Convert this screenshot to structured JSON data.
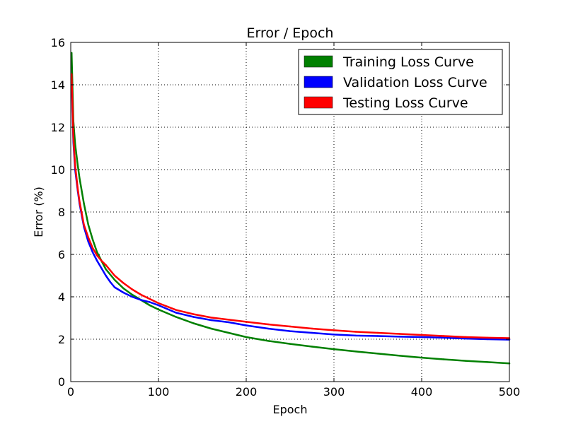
{
  "chart_data": {
    "type": "line",
    "title": "Error / Epoch",
    "xlabel": "Epoch",
    "ylabel": "Error (%)",
    "xlim": [
      0,
      500
    ],
    "ylim": [
      0,
      16
    ],
    "xticks": [
      0,
      100,
      200,
      300,
      400,
      500
    ],
    "yticks": [
      0,
      2,
      4,
      6,
      8,
      10,
      12,
      14,
      16
    ],
    "grid": true,
    "legend_position": "top-right",
    "series": [
      {
        "name": "Training Loss Curve",
        "color": "#008000",
        "x": [
          1,
          3,
          5,
          8,
          10,
          15,
          20,
          25,
          30,
          40,
          50,
          60,
          70,
          80,
          90,
          100,
          120,
          140,
          160,
          180,
          200,
          225,
          250,
          275,
          300,
          325,
          350,
          375,
          400,
          425,
          450,
          475,
          500
        ],
        "y": [
          15.5,
          12.3,
          11.2,
          10.2,
          9.6,
          8.4,
          7.4,
          6.7,
          6.1,
          5.3,
          4.8,
          4.4,
          4.1,
          3.85,
          3.6,
          3.4,
          3.05,
          2.75,
          2.5,
          2.3,
          2.1,
          1.92,
          1.78,
          1.65,
          1.53,
          1.42,
          1.32,
          1.22,
          1.13,
          1.05,
          0.98,
          0.92,
          0.86
        ]
      },
      {
        "name": "Validation Loss Curve",
        "color": "#0000ff",
        "x": [
          1,
          3,
          5,
          8,
          10,
          15,
          20,
          25,
          30,
          35,
          40,
          45,
          50,
          60,
          70,
          80,
          90,
          100,
          120,
          140,
          160,
          180,
          200,
          225,
          250,
          275,
          300,
          325,
          350,
          375,
          400,
          425,
          450,
          475,
          500
        ],
        "y": [
          14.2,
          11.3,
          10.0,
          9.0,
          8.4,
          7.3,
          6.6,
          6.1,
          5.7,
          5.35,
          5.0,
          4.7,
          4.45,
          4.2,
          4.0,
          3.85,
          3.75,
          3.6,
          3.25,
          3.05,
          2.9,
          2.8,
          2.65,
          2.5,
          2.38,
          2.3,
          2.22,
          2.17,
          2.15,
          2.12,
          2.1,
          2.07,
          2.03,
          2.0,
          1.98
        ]
      },
      {
        "name": "Testing Loss Curve",
        "color": "#ff0000",
        "x": [
          1,
          3,
          5,
          8,
          10,
          15,
          20,
          25,
          30,
          35,
          40,
          50,
          60,
          70,
          80,
          90,
          100,
          120,
          140,
          160,
          180,
          200,
          225,
          250,
          275,
          300,
          325,
          350,
          375,
          400,
          425,
          450,
          475,
          500
        ],
        "y": [
          14.5,
          11.5,
          10.2,
          9.1,
          8.5,
          7.4,
          6.8,
          6.3,
          5.95,
          5.7,
          5.5,
          5.0,
          4.65,
          4.35,
          4.1,
          3.9,
          3.7,
          3.38,
          3.18,
          3.02,
          2.92,
          2.82,
          2.7,
          2.6,
          2.5,
          2.42,
          2.35,
          2.3,
          2.25,
          2.2,
          2.15,
          2.1,
          2.07,
          2.05
        ]
      }
    ]
  }
}
